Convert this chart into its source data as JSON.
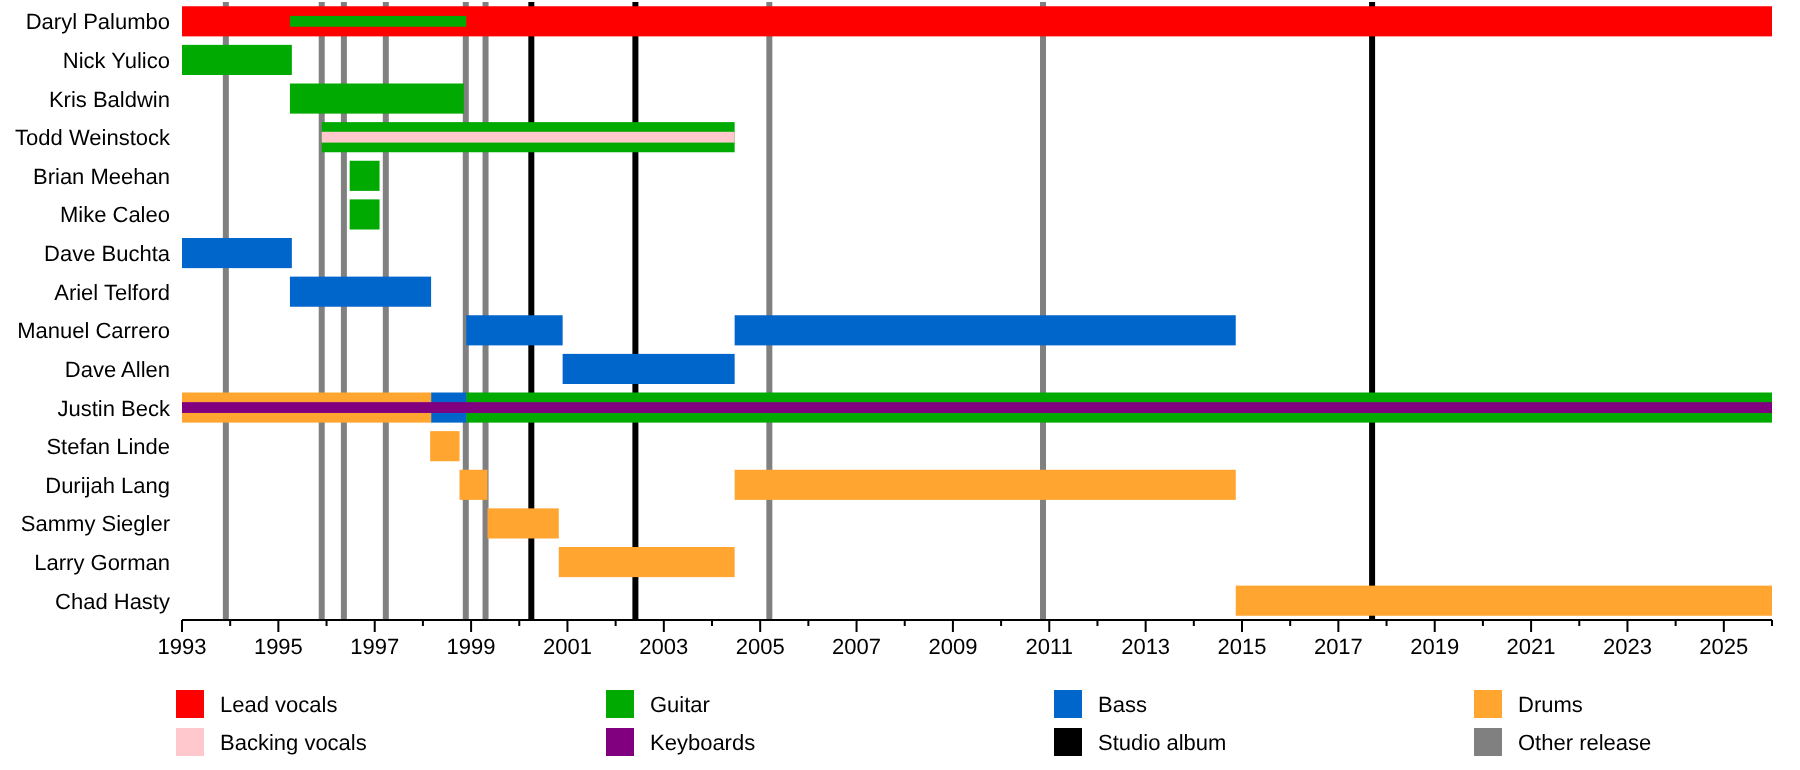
{
  "chart_data": {
    "type": "bar",
    "orientation": "horizontal",
    "legend": "bottom",
    "grid": false,
    "categories": [
      "Daryl Palumbo",
      "Nick Yulico",
      "Kris Baldwin",
      "Todd Weinstock",
      "Brian Meehan",
      "Mike Caleo",
      "Dave Buchta",
      "Ariel Telford",
      "Manuel Carrero",
      "Dave Allen",
      "Justin Beck",
      "Stefan Linde",
      "Durijah Lang",
      "Sammy Siegler",
      "Larry Gorman",
      "Chad Hasty"
    ],
    "xlim": [
      1993,
      2026
    ],
    "xticks": [
      1993,
      {
        "value": 1994,
        "label": null
      },
      1995,
      {
        "value": 1996,
        "label": null
      },
      1997,
      {
        "value": 1998,
        "label": null
      },
      1999,
      {
        "value": 2000,
        "label": null
      },
      2001,
      {
        "value": 2002,
        "label": null
      },
      2003,
      {
        "value": 2004,
        "label": null
      },
      2005,
      {
        "value": 2006,
        "label": null
      },
      2007,
      {
        "value": 2008,
        "label": null
      },
      2009,
      {
        "value": 2010,
        "label": null
      },
      2011,
      {
        "value": 2012,
        "label": null
      },
      2013,
      {
        "value": 2014,
        "label": null
      },
      2015,
      {
        "value": 2016,
        "label": null
      },
      2017,
      {
        "value": 2018,
        "label": null
      },
      2019,
      {
        "value": 2020,
        "label": null
      },
      2021,
      {
        "value": 2022,
        "label": null
      },
      2023,
      {
        "value": 2024,
        "label": null
      },
      2025,
      {
        "value": 2026,
        "label": null
      }
    ],
    "series": [
      {
        "name": "Lead vocals",
        "color": "#ff0000",
        "base": [
          1993,
          null,
          null,
          null,
          null,
          null,
          null,
          null,
          null,
          null,
          null,
          null,
          null,
          null,
          null,
          null
        ],
        "values": [
          33,
          null,
          null,
          null,
          null,
          null,
          null,
          null,
          null,
          null,
          null,
          null,
          null,
          null,
          null,
          null
        ]
      },
      {
        "name": "Guitar",
        "color": "#00aa00",
        "base": [
          1995.24,
          1993,
          1995.24,
          1995.9,
          1996.48,
          1996.48,
          null,
          null,
          null,
          null,
          1998.9,
          null,
          null,
          null,
          null,
          null
        ],
        "values": [
          3.66,
          2.28,
          3.61,
          8.57,
          0.62,
          0.62,
          null,
          null,
          null,
          null,
          27.1,
          null,
          null,
          null,
          null,
          null
        ]
      },
      {
        "name": "Bass",
        "color": "#0066cc",
        "base": [
          null,
          null,
          null,
          null,
          null,
          null,
          1993,
          1995.24,
          1998.9,
          2000.9,
          1998.17,
          null,
          null,
          null,
          null,
          null
        ],
        "values": [
          null,
          null,
          null,
          null,
          null,
          null,
          2.28,
          2.93,
          2,
          3.57,
          0.73,
          null,
          null,
          null,
          null,
          null
        ]
      },
      {
        "name": "Drums",
        "color": "#ffa530",
        "base": [
          null,
          null,
          null,
          null,
          null,
          null,
          null,
          null,
          null,
          null,
          1993,
          1998.15,
          1998.76,
          1999.34,
          2000.82,
          2014.87
        ],
        "values": [
          null,
          null,
          null,
          null,
          null,
          null,
          null,
          null,
          null,
          null,
          5.17,
          0.61,
          0.58,
          1.48,
          3.65,
          11.13
        ]
      },
      {
        "color": "#0066cc",
        "base": [
          null,
          null,
          null,
          null,
          null,
          null,
          null,
          null,
          2004.47,
          null,
          null,
          null,
          null,
          null,
          null,
          null
        ],
        "values": [
          null,
          null,
          null,
          null,
          null,
          null,
          null,
          null,
          10.4,
          null,
          null,
          null,
          null,
          null,
          null,
          null
        ]
      },
      {
        "color": "#ffa530",
        "base": [
          null,
          null,
          null,
          null,
          null,
          null,
          null,
          null,
          null,
          null,
          null,
          null,
          2004.47,
          null,
          null,
          null
        ],
        "values": [
          null,
          null,
          null,
          null,
          null,
          null,
          null,
          null,
          null,
          null,
          null,
          null,
          10.4,
          null,
          null,
          null
        ]
      },
      {
        "name": "Backing vocals",
        "color": "#ffc8cc",
        "base": [
          null,
          null,
          null,
          1995.9,
          null,
          null,
          null,
          null,
          null,
          null,
          null,
          null,
          null,
          null,
          null,
          null
        ],
        "values": [
          null,
          null,
          null,
          8.57,
          null,
          null,
          null,
          null,
          null,
          null,
          null,
          null,
          null,
          null,
          null,
          null
        ]
      },
      {
        "name": "Keyboards",
        "color": "#800080",
        "base": [
          null,
          null,
          null,
          null,
          null,
          null,
          null,
          null,
          null,
          null,
          1993,
          null,
          null,
          null,
          null,
          null
        ],
        "values": [
          null,
          null,
          null,
          null,
          null,
          null,
          null,
          null,
          null,
          null,
          33,
          null,
          null,
          null,
          null,
          null
        ]
      }
    ],
    "ref_lines": [
      {
        "axis": "x",
        "value": 2000.25,
        "color": "#000000",
        "label": "Studio album"
      },
      {
        "axis": "x",
        "value": 2002.41,
        "color": "#000000",
        "label": null
      },
      {
        "axis": "x",
        "value": 2017.7,
        "color": "#000000",
        "label": null
      },
      {
        "axis": "x",
        "value": 1993.91,
        "color": "#808080",
        "label": "Other release"
      },
      {
        "axis": "x",
        "value": 1995.9,
        "color": "#808080",
        "label": null
      },
      {
        "axis": "x",
        "value": 1996.36,
        "color": "#808080",
        "label": null
      },
      {
        "axis": "x",
        "value": 1997.23,
        "color": "#808080",
        "label": null
      },
      {
        "axis": "x",
        "value": 1998.89,
        "color": "#808080",
        "label": null
      },
      {
        "axis": "x",
        "value": 1999.3,
        "color": "#808080",
        "label": null
      },
      {
        "axis": "x",
        "value": 2005.19,
        "color": "#808080",
        "label": null
      },
      {
        "axis": "x",
        "value": 2010.87,
        "color": "#808080",
        "label": null
      }
    ]
  }
}
